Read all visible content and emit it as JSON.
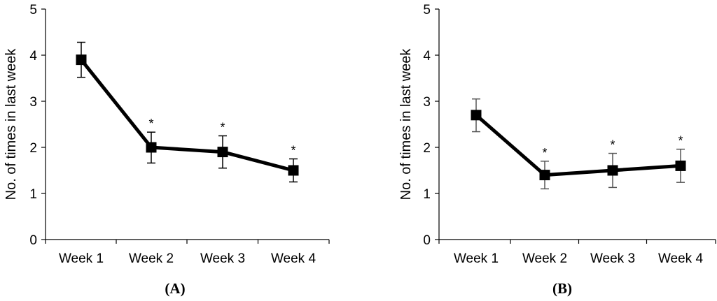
{
  "chart_data": [
    {
      "type": "line",
      "panel_label": "(A)",
      "categories": [
        "Week 1",
        "Week 2",
        "Week 3",
        "Week 4"
      ],
      "values": [
        3.9,
        2.0,
        1.9,
        1.5
      ],
      "error_upper": [
        4.28,
        2.33,
        2.25,
        1.75
      ],
      "error_lower": [
        3.52,
        1.66,
        1.55,
        1.25
      ],
      "significance": [
        "",
        "*",
        "*",
        "*"
      ],
      "ylabel": "No. of times in last week",
      "ylim": [
        0,
        5
      ],
      "yticks": [
        "0",
        "1",
        "2",
        "3",
        "4",
        "5"
      ],
      "error_color": "#000000"
    },
    {
      "type": "line",
      "panel_label": "(B)",
      "categories": [
        "Week 1",
        "Week 2",
        "Week 3",
        "Week 4"
      ],
      "values": [
        2.7,
        1.4,
        1.5,
        1.6
      ],
      "error_upper": [
        3.05,
        1.7,
        1.87,
        1.96
      ],
      "error_lower": [
        2.34,
        1.1,
        1.13,
        1.24
      ],
      "significance": [
        "",
        "*",
        "*",
        "*"
      ],
      "ylabel": "No. of times in last week",
      "ylim": [
        0,
        5
      ],
      "yticks": [
        "0",
        "1",
        "2",
        "3",
        "4",
        "5"
      ],
      "error_color": "#555555"
    }
  ]
}
